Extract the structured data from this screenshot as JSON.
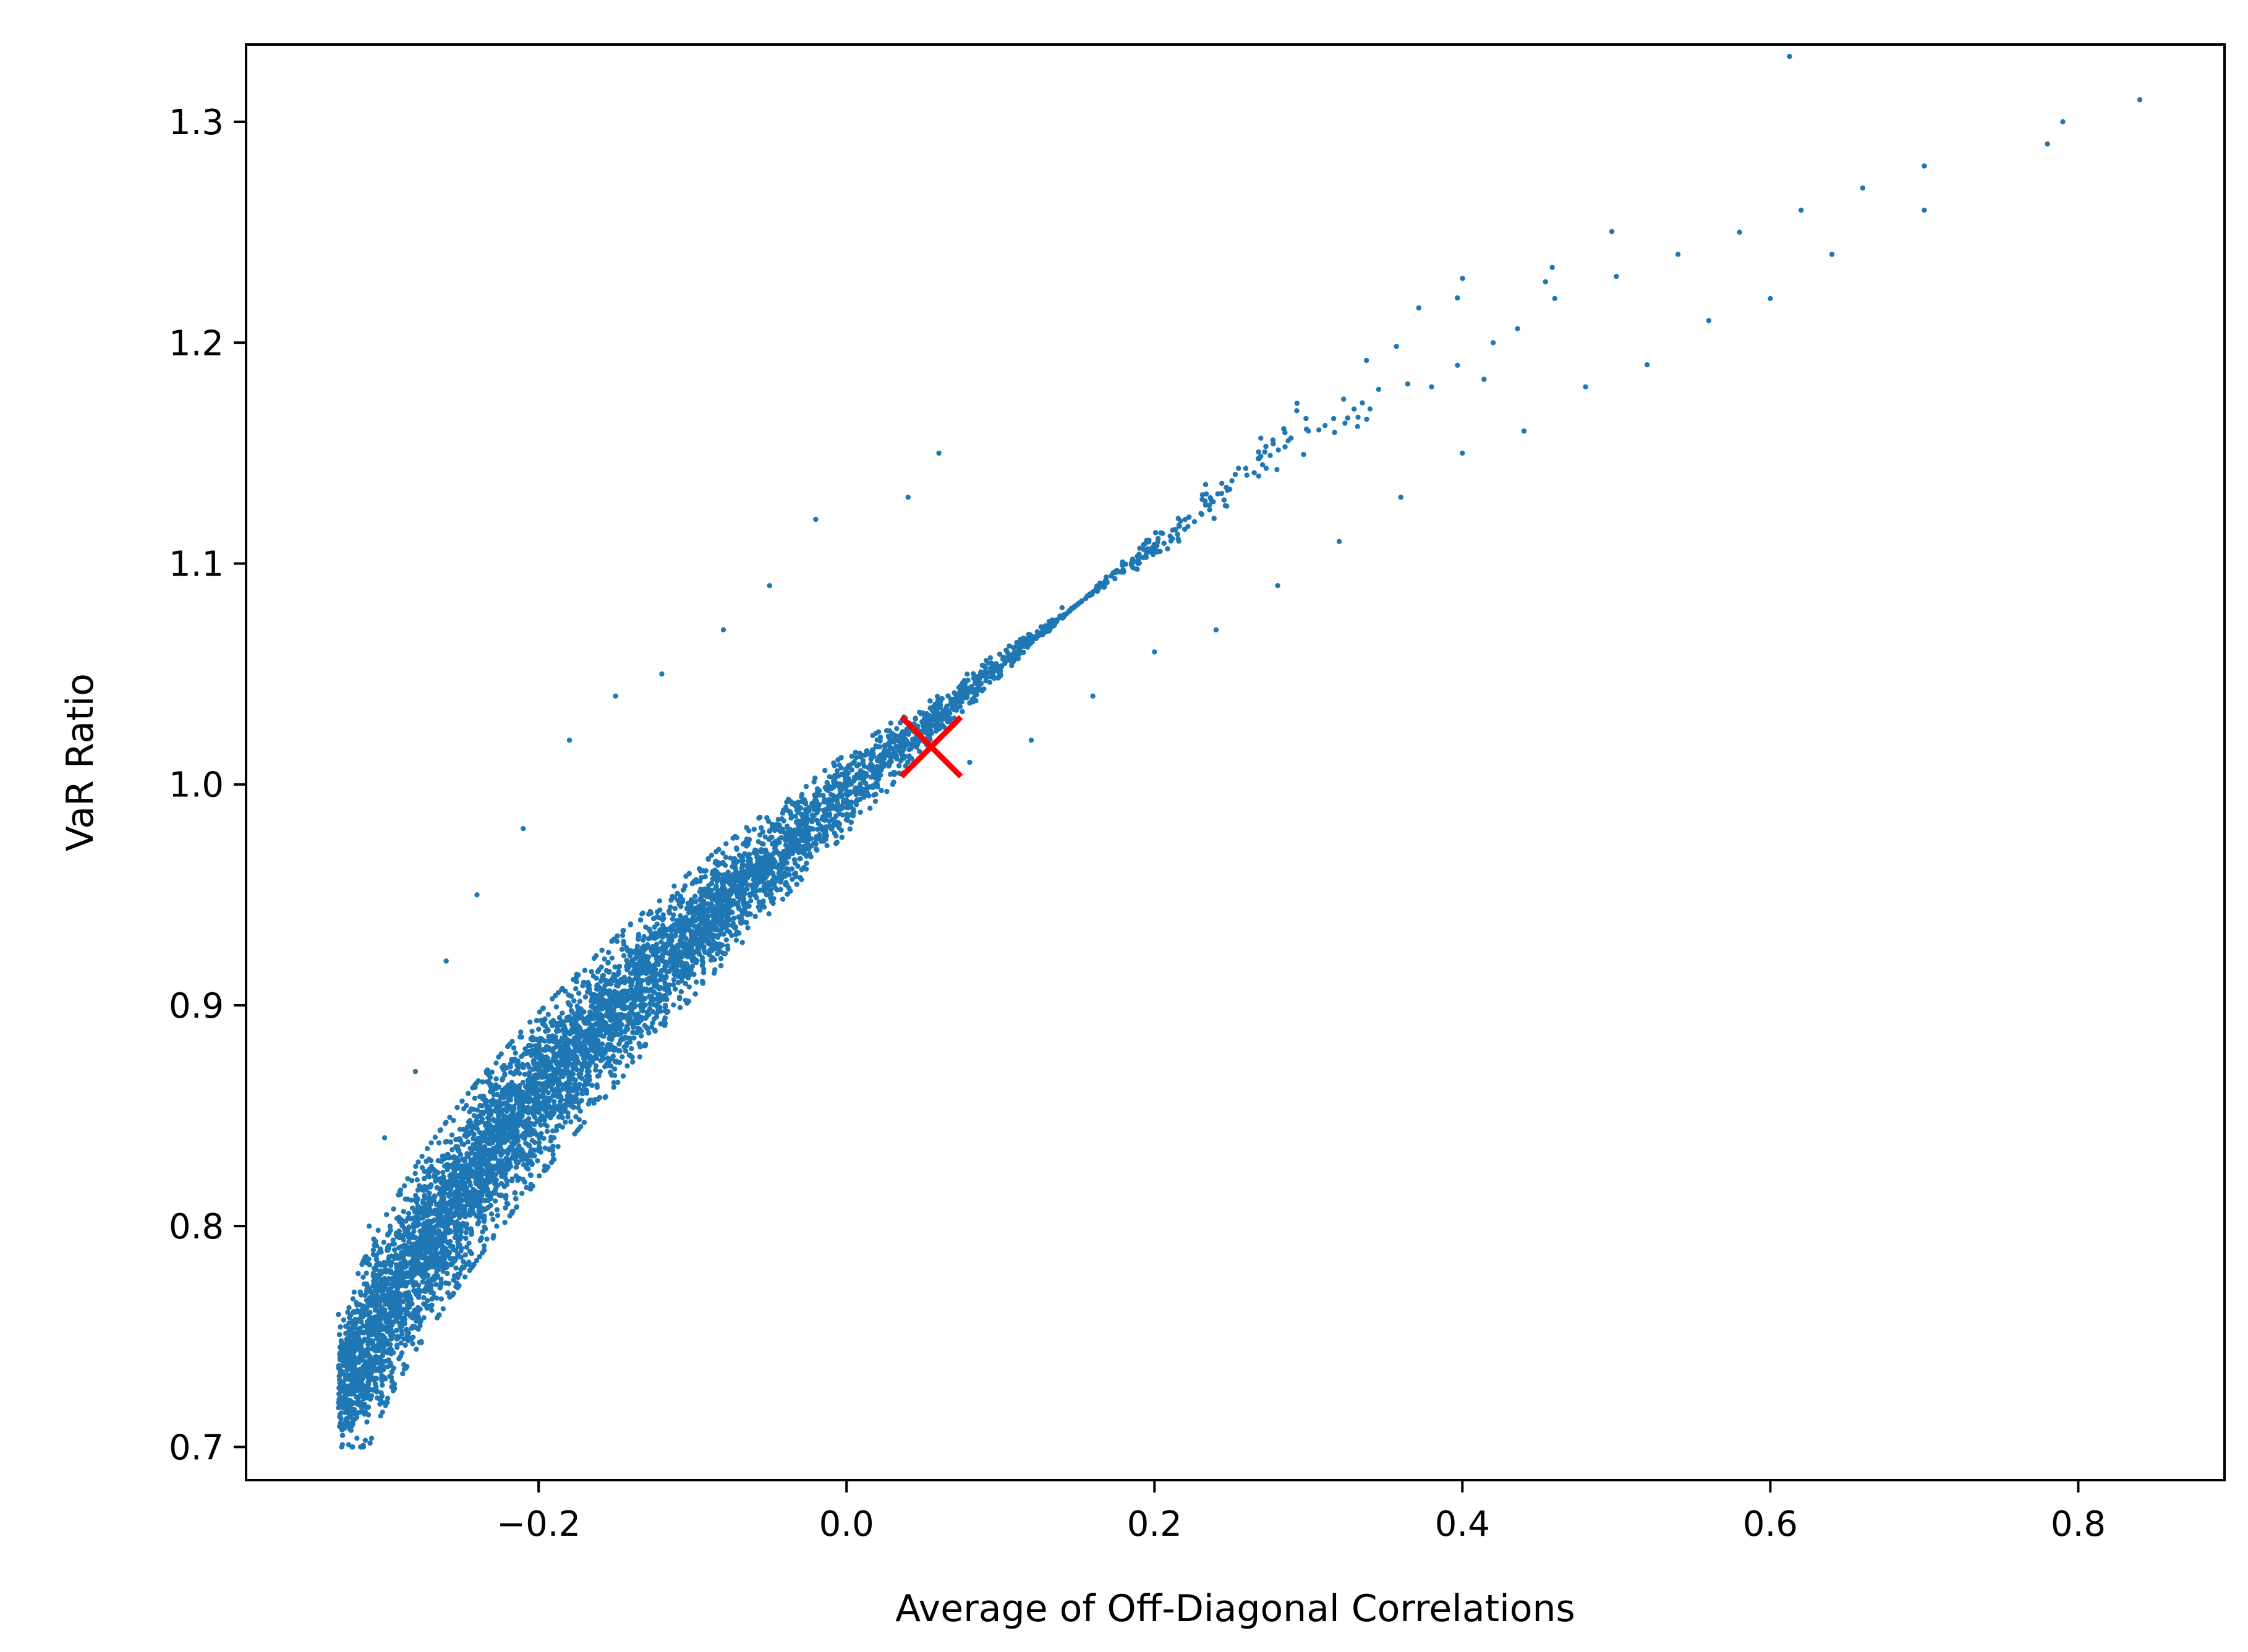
{
  "chart_data": {
    "type": "scatter",
    "title": "",
    "xlabel": "Average of Off-Diagonal Correlations",
    "ylabel": "VaR Ratio",
    "xlim": [
      -0.39,
      0.895
    ],
    "ylim": [
      0.685,
      1.335
    ],
    "x_ticks": [
      -0.2,
      0.0,
      0.2,
      0.4,
      0.6,
      0.8
    ],
    "x_tick_labels": [
      "−0.2",
      "0.0",
      "0.2",
      "0.4",
      "0.6",
      "0.8"
    ],
    "y_ticks": [
      0.7,
      0.8,
      0.9,
      1.0,
      1.1,
      1.2,
      1.3
    ],
    "y_tick_labels": [
      "0.7",
      "0.8",
      "0.9",
      "1.0",
      "1.1",
      "1.2",
      "1.3"
    ],
    "grid": false,
    "legend": "none",
    "colors": {
      "points": "#1f77b4",
      "marker": "#ff0000"
    },
    "series": [
      {
        "description_shape": "dense cloud of simulated points forming a concave band from about (-0.32, 0.72) rising to about (0.84, 1.31)",
        "points": [
          [
            -0.33,
            0.76
          ],
          [
            -0.32,
            0.72
          ],
          [
            -0.31,
            0.73
          ],
          [
            -0.3,
            0.72
          ],
          [
            -0.31,
            0.8
          ],
          [
            -0.3,
            0.84
          ],
          [
            -0.28,
            0.87
          ],
          [
            -0.26,
            0.92
          ],
          [
            -0.24,
            0.95
          ],
          [
            -0.21,
            0.98
          ],
          [
            -0.27,
            0.77
          ],
          [
            -0.25,
            0.79
          ],
          [
            -0.22,
            0.81
          ],
          [
            -0.19,
            0.84
          ],
          [
            -0.16,
            0.87
          ],
          [
            -0.13,
            0.89
          ],
          [
            -0.1,
            0.92
          ],
          [
            -0.07,
            0.94
          ],
          [
            -0.04,
            0.96
          ],
          [
            -0.01,
            0.98
          ],
          [
            -0.18,
            1.02
          ],
          [
            -0.15,
            1.04
          ],
          [
            -0.12,
            1.05
          ],
          [
            -0.08,
            1.07
          ],
          [
            -0.05,
            1.09
          ],
          [
            -0.02,
            1.12
          ],
          [
            0.04,
            1.13
          ],
          [
            0.06,
            1.15
          ],
          [
            0.03,
            1.0
          ],
          [
            0.07,
            1.03
          ],
          [
            0.1,
            1.05
          ],
          [
            0.14,
            1.08
          ],
          [
            0.18,
            1.1
          ],
          [
            0.22,
            1.12
          ],
          [
            0.26,
            1.14
          ],
          [
            0.3,
            1.16
          ],
          [
            0.34,
            1.17
          ],
          [
            0.38,
            1.18
          ],
          [
            0.42,
            1.2
          ],
          [
            0.46,
            1.22
          ],
          [
            0.5,
            1.23
          ],
          [
            0.54,
            1.24
          ],
          [
            0.58,
            1.25
          ],
          [
            0.62,
            1.26
          ],
          [
            0.66,
            1.27
          ],
          [
            0.7,
            1.28
          ],
          [
            0.79,
            1.3
          ],
          [
            0.84,
            1.31
          ],
          [
            0.78,
            1.29
          ],
          [
            0.7,
            1.26
          ],
          [
            0.08,
            1.01
          ],
          [
            0.12,
            1.02
          ],
          [
            0.16,
            1.04
          ],
          [
            0.2,
            1.06
          ],
          [
            0.24,
            1.07
          ],
          [
            0.28,
            1.09
          ],
          [
            0.32,
            1.11
          ],
          [
            0.36,
            1.13
          ],
          [
            0.4,
            1.15
          ],
          [
            0.44,
            1.16
          ],
          [
            0.48,
            1.18
          ],
          [
            0.52,
            1.19
          ],
          [
            0.56,
            1.21
          ],
          [
            0.6,
            1.22
          ],
          [
            0.64,
            1.24
          ]
        ]
      }
    ],
    "highlight_marker": {
      "shape": "x",
      "x": 0.055,
      "y": 1.017
    }
  }
}
